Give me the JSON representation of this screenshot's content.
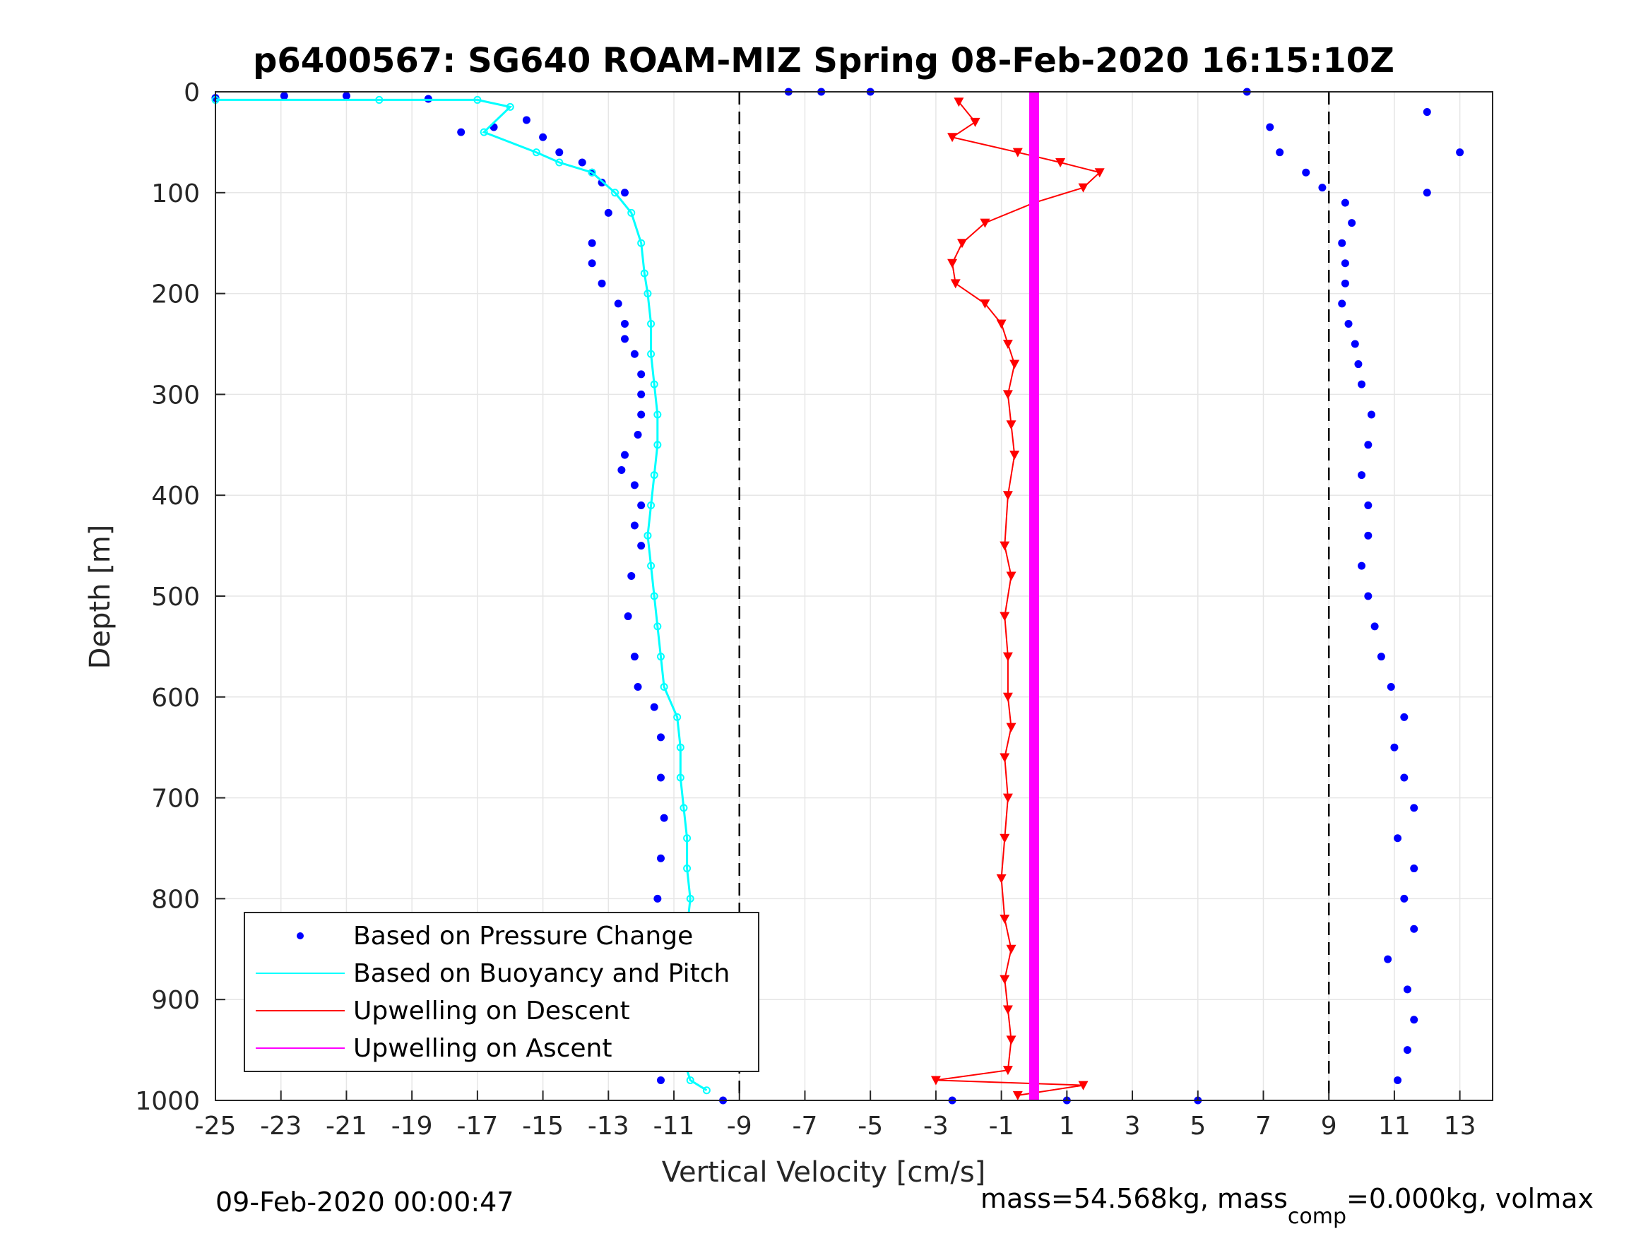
{
  "chart_data": {
    "type": "scatter",
    "title": "p6400567: SG640 ROAM-MIZ Spring 08-Feb-2020 16:15:10Z",
    "xlabel": "Vertical Velocity [cm/s]",
    "ylabel": "Depth [m]",
    "xlim": [
      -25,
      14
    ],
    "ylim": [
      0,
      1000
    ],
    "y_reversed": true,
    "grid": true,
    "xticks": [
      "-25",
      "-23",
      "-21",
      "-19",
      "-17",
      "-15",
      "-13",
      "-11",
      "-9",
      "-7",
      "-5",
      "-3",
      "-1",
      "1",
      "3",
      "5",
      "7",
      "9",
      "11",
      "13"
    ],
    "yticks": [
      "0",
      "100",
      "200",
      "300",
      "400",
      "500",
      "600",
      "700",
      "800",
      "900",
      "1000"
    ],
    "dashed_vlines": [
      -9,
      9
    ],
    "legend_position": "bottom-left",
    "legend": [
      {
        "label": "Based on Pressure Change",
        "color": "#0000ff",
        "marker": "dot"
      },
      {
        "label": "Based on Buoyancy and Pitch",
        "color": "#00ffff",
        "marker": "line"
      },
      {
        "label": "Upwelling on Descent",
        "color": "#ff0000",
        "marker": "line"
      },
      {
        "label": "Upwelling on Ascent",
        "color": "#ff00ff",
        "marker": "line"
      }
    ],
    "series": [
      {
        "name": "Based on Pressure Change",
        "color": "#0000ff",
        "points": [
          [
            -25,
            6
          ],
          [
            -22.9,
            4
          ],
          [
            -21,
            4
          ],
          [
            -18.5,
            7
          ],
          [
            -17.5,
            40
          ],
          [
            -16.5,
            35
          ],
          [
            -15.5,
            28
          ],
          [
            -15,
            45
          ],
          [
            -14.5,
            60
          ],
          [
            -13.8,
            70
          ],
          [
            -13.5,
            80
          ],
          [
            -13.2,
            90
          ],
          [
            -12.5,
            100
          ],
          [
            -13,
            120
          ],
          [
            -13.5,
            150
          ],
          [
            -13.5,
            170
          ],
          [
            -13.2,
            190
          ],
          [
            -12.7,
            210
          ],
          [
            -12.5,
            230
          ],
          [
            -12.5,
            245
          ],
          [
            -12.2,
            260
          ],
          [
            -12,
            280
          ],
          [
            -12,
            300
          ],
          [
            -12,
            320
          ],
          [
            -12.1,
            340
          ],
          [
            -12.5,
            360
          ],
          [
            -12.6,
            375
          ],
          [
            -12.2,
            390
          ],
          [
            -12.0,
            410
          ],
          [
            -12.2,
            430
          ],
          [
            -12.0,
            450
          ],
          [
            -12.3,
            480
          ],
          [
            -12.4,
            520
          ],
          [
            -12.2,
            560
          ],
          [
            -12.1,
            590
          ],
          [
            -11.6,
            610
          ],
          [
            -11.4,
            640
          ],
          [
            -11.4,
            680
          ],
          [
            -11.3,
            720
          ],
          [
            -11.4,
            760
          ],
          [
            -11.5,
            800
          ],
          [
            -11.6,
            840
          ],
          [
            -11.4,
            880
          ],
          [
            -11.3,
            920
          ],
          [
            -11.4,
            960
          ],
          [
            -11.4,
            980
          ],
          [
            -9.5,
            1000
          ],
          [
            -2.5,
            1000
          ],
          [
            1,
            1000
          ],
          [
            5,
            1000
          ],
          [
            7.2,
            35
          ],
          [
            7.5,
            60
          ],
          [
            8.3,
            80
          ],
          [
            8.8,
            95
          ],
          [
            9.5,
            110
          ],
          [
            9.7,
            130
          ],
          [
            9.4,
            150
          ],
          [
            9.5,
            170
          ],
          [
            9.5,
            190
          ],
          [
            9.4,
            210
          ],
          [
            9.6,
            230
          ],
          [
            9.8,
            250
          ],
          [
            9.9,
            270
          ],
          [
            10,
            290
          ],
          [
            10.3,
            320
          ],
          [
            10.2,
            350
          ],
          [
            10,
            380
          ],
          [
            10.2,
            410
          ],
          [
            10.2,
            440
          ],
          [
            10,
            470
          ],
          [
            10.2,
            500
          ],
          [
            10.4,
            530
          ],
          [
            10.6,
            560
          ],
          [
            10.9,
            590
          ],
          [
            11.3,
            620
          ],
          [
            11,
            650
          ],
          [
            11.3,
            680
          ],
          [
            11.6,
            710
          ],
          [
            11.1,
            740
          ],
          [
            11.6,
            770
          ],
          [
            11.3,
            800
          ],
          [
            11.6,
            830
          ],
          [
            10.8,
            860
          ],
          [
            11.4,
            890
          ],
          [
            11.6,
            920
          ],
          [
            11.4,
            950
          ],
          [
            11.1,
            980
          ],
          [
            -5,
            0
          ],
          [
            -7.5,
            0
          ],
          [
            -6.5,
            0
          ],
          [
            6.5,
            0
          ],
          [
            12,
            20
          ],
          [
            12,
            100
          ],
          [
            13,
            60
          ]
        ]
      },
      {
        "name": "Based on Buoyancy and Pitch",
        "color": "#00ffff",
        "points": [
          [
            -25,
            8
          ],
          [
            -20,
            8
          ],
          [
            -17,
            8
          ],
          [
            -16,
            15
          ],
          [
            -16.8,
            40
          ],
          [
            -15.2,
            60
          ],
          [
            -14.5,
            70
          ],
          [
            -13.5,
            80
          ],
          [
            -12.8,
            100
          ],
          [
            -12.3,
            120
          ],
          [
            -12,
            150
          ],
          [
            -11.9,
            180
          ],
          [
            -11.8,
            200
          ],
          [
            -11.7,
            230
          ],
          [
            -11.7,
            260
          ],
          [
            -11.6,
            290
          ],
          [
            -11.5,
            320
          ],
          [
            -11.5,
            350
          ],
          [
            -11.6,
            380
          ],
          [
            -11.7,
            410
          ],
          [
            -11.8,
            440
          ],
          [
            -11.7,
            470
          ],
          [
            -11.6,
            500
          ],
          [
            -11.5,
            530
          ],
          [
            -11.4,
            560
          ],
          [
            -11.3,
            590
          ],
          [
            -10.9,
            620
          ],
          [
            -10.8,
            650
          ],
          [
            -10.8,
            680
          ],
          [
            -10.7,
            710
          ],
          [
            -10.6,
            740
          ],
          [
            -10.6,
            770
          ],
          [
            -10.5,
            800
          ],
          [
            -10.6,
            830
          ],
          [
            -10.8,
            860
          ],
          [
            -10.8,
            890
          ],
          [
            -10.8,
            920
          ],
          [
            -10.8,
            950
          ],
          [
            -10.5,
            980
          ],
          [
            -10.0,
            990
          ]
        ]
      },
      {
        "name": "Upwelling on Descent",
        "color": "#ff0000",
        "points": [
          [
            -2.3,
            10
          ],
          [
            -1.8,
            30
          ],
          [
            -2.5,
            45
          ],
          [
            -0.5,
            60
          ],
          [
            0.8,
            70
          ],
          [
            2,
            80
          ],
          [
            1.5,
            95
          ],
          [
            0,
            110
          ],
          [
            -1.5,
            130
          ],
          [
            -2.2,
            150
          ],
          [
            -2.5,
            170
          ],
          [
            -2.4,
            190
          ],
          [
            -1.5,
            210
          ],
          [
            -1.0,
            230
          ],
          [
            -0.8,
            250
          ],
          [
            -0.6,
            270
          ],
          [
            -0.8,
            300
          ],
          [
            -0.7,
            330
          ],
          [
            -0.6,
            360
          ],
          [
            -0.8,
            400
          ],
          [
            -0.9,
            450
          ],
          [
            -0.7,
            480
          ],
          [
            -0.9,
            520
          ],
          [
            -0.8,
            560
          ],
          [
            -0.8,
            600
          ],
          [
            -0.7,
            630
          ],
          [
            -0.9,
            660
          ],
          [
            -0.8,
            700
          ],
          [
            -0.9,
            740
          ],
          [
            -1.0,
            780
          ],
          [
            -0.9,
            820
          ],
          [
            -0.7,
            850
          ],
          [
            -0.9,
            880
          ],
          [
            -0.8,
            910
          ],
          [
            -0.7,
            940
          ],
          [
            -0.8,
            970
          ],
          [
            -3.0,
            980
          ],
          [
            1.5,
            985
          ],
          [
            -0.5,
            995
          ]
        ]
      },
      {
        "name": "Upwelling on Ascent",
        "color": "#ff00ff",
        "points": [
          [
            0.0,
            0
          ],
          [
            0.0,
            1000
          ]
        ]
      }
    ]
  },
  "footer": {
    "left_text": "09-Feb-2020 00:00:47",
    "right_text_a": "mass=54.568kg, mass",
    "right_text_sub": "comp",
    "right_text_b": "=0.000kg, volmax"
  }
}
